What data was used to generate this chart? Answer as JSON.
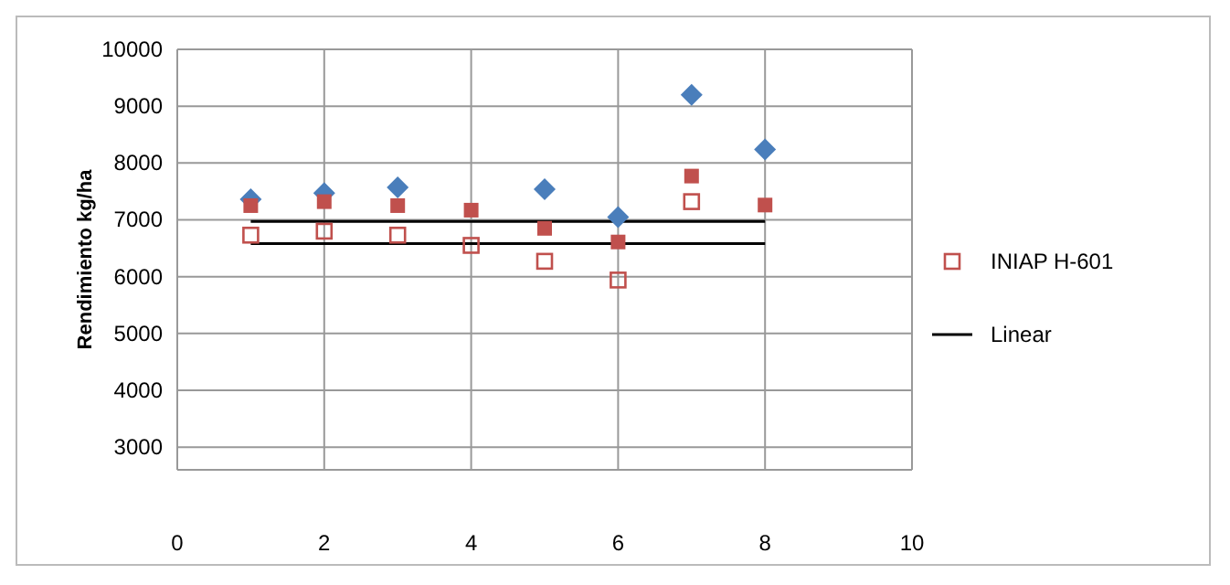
{
  "chart_data": {
    "type": "scatter",
    "ylabel": "Rendimiento kg/ha",
    "x": [
      1,
      2,
      3,
      4,
      5,
      6,
      7,
      8
    ],
    "xlim": [
      0,
      10
    ],
    "xticks": [
      0,
      2,
      4,
      6,
      8,
      10
    ],
    "ylim": [
      2600,
      10000
    ],
    "yticks": [
      3000,
      4000,
      5000,
      6000,
      7000,
      8000,
      9000,
      10000
    ],
    "grid": true,
    "legend": "right",
    "series": [
      {
        "color": "#4a7ebb",
        "marker": "diamond",
        "values": [
          7360,
          7470,
          7570,
          null,
          7540,
          7050,
          9200,
          8240
        ]
      },
      {
        "color": "#c0504d",
        "marker": "square",
        "values": [
          7250,
          7320,
          7250,
          7170,
          6850,
          6610,
          7770,
          7260
        ]
      },
      {
        "name": "INIAP H-601",
        "color": "#c0504d",
        "marker": "square-open",
        "values": [
          6730,
          6800,
          6730,
          6550,
          6270,
          5940,
          7320,
          null
        ]
      },
      {
        "name": "Linear",
        "type": "line",
        "color": "#000000",
        "values": [
          6970,
          6970,
          6970,
          6970,
          6970,
          6970,
          6970,
          6970
        ]
      },
      {
        "type": "line",
        "color": "#000000",
        "values": [
          6580,
          6580,
          6580,
          6580,
          6580,
          6580,
          6580,
          6580
        ]
      }
    ]
  }
}
